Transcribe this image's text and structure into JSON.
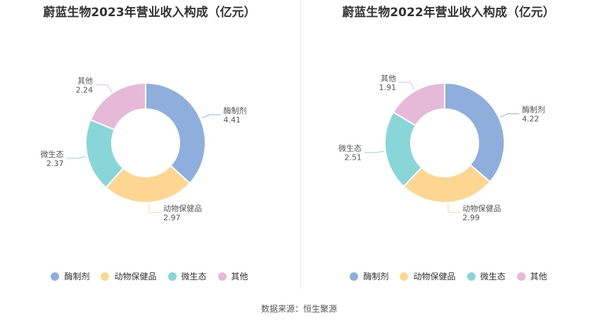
{
  "colors": {
    "酶制剂": "#8eaedc",
    "动物保健品": "#fdd792",
    "微生态": "#88d6d8",
    "其他": "#e6b9d8"
  },
  "source": "数据来源：恒生聚源",
  "chart_data": [
    {
      "type": "pie",
      "title": "蔚蓝生物2023年营业收入构成（亿元）",
      "categories": [
        "酶制剂",
        "动物保健品",
        "微生态",
        "其他"
      ],
      "values": [
        4.41,
        2.97,
        2.37,
        2.24
      ],
      "value_labels": [
        "4.41",
        "2.97",
        "2.37",
        "2.24"
      ],
      "donut": true,
      "legend": "bottom"
    },
    {
      "type": "pie",
      "title": "蔚蓝生物2022年营业收入构成（亿元）",
      "categories": [
        "酶制剂",
        "动物保健品",
        "微生态",
        "其他"
      ],
      "values": [
        4.22,
        2.99,
        2.51,
        1.91
      ],
      "value_labels": [
        "4.22",
        "2.99",
        "2.51",
        "1.91"
      ],
      "donut": true,
      "legend": "bottom"
    }
  ]
}
